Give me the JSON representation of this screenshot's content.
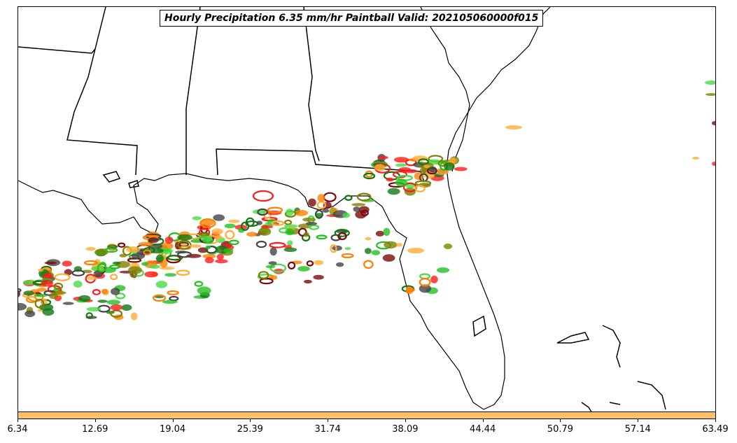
{
  "title": "Hourly Precipitation 6.35 mm/hr Paintball Valid: 202105060000f015",
  "colorbar": {
    "color": "#ffc266",
    "ticks": [
      "6.34",
      "12.69",
      "19.04",
      "25.39",
      "31.74",
      "38.09",
      "44.44",
      "50.79",
      "57.14",
      "63.49"
    ]
  },
  "palette": {
    "red": "#ff1a1a",
    "orange": "#ff8000",
    "light_orange": "#ffad33",
    "green": "#20c020",
    "dark_green": "#117711",
    "olive": "#808000",
    "dark_red": "#7a0a0a",
    "gray": "#444444",
    "light_green": "#44dd44"
  }
}
